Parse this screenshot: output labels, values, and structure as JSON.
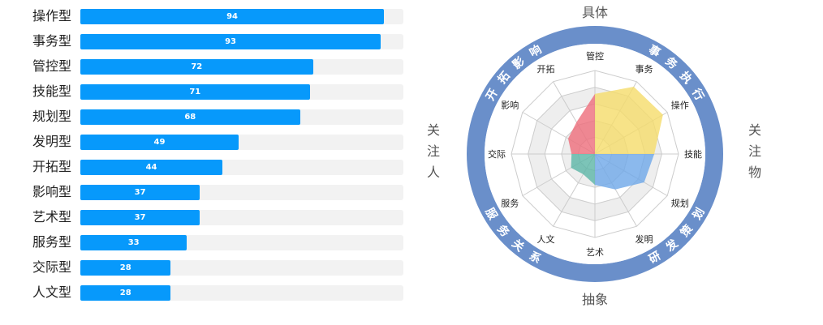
{
  "chart_data": [
    {
      "type": "bar",
      "orientation": "horizontal",
      "xlim": [
        0,
        100
      ],
      "categories": [
        "操作型",
        "事务型",
        "管控型",
        "技能型",
        "规划型",
        "发明型",
        "开拓型",
        "影响型",
        "艺术型",
        "服务型",
        "交际型",
        "人文型"
      ],
      "values": [
        94,
        93,
        72,
        71,
        68,
        49,
        44,
        37,
        37,
        33,
        28,
        28
      ],
      "colors": {
        "bar": "#0799fb",
        "track": "#f2f2f2"
      }
    },
    {
      "type": "radar",
      "axes": [
        "管控",
        "事务",
        "操作",
        "技能",
        "规划",
        "发明",
        "艺术",
        "人文",
        "服务",
        "交际",
        "影响",
        "开拓"
      ],
      "values": [
        72,
        93,
        94,
        71,
        68,
        49,
        37,
        28,
        33,
        28,
        37,
        44
      ],
      "rlim": [
        0,
        100
      ],
      "quadrants": [
        {
          "label": "事务执行",
          "axes": [
            "管控",
            "事务",
            "操作"
          ],
          "color": "#f5dc6a"
        },
        {
          "label": "研发策划",
          "axes": [
            "技能",
            "规划",
            "发明"
          ],
          "color": "#6ea7e8"
        },
        {
          "label": "服务关系",
          "axes": [
            "艺术",
            "人文",
            "服务"
          ],
          "color": "#5bb5a6"
        },
        {
          "label": "开拓影响",
          "axes": [
            "交际",
            "影响",
            "开拓"
          ],
          "color": "#ee6d7a"
        }
      ],
      "poles": {
        "top": "具体",
        "bottom": "抽象",
        "left": "关注人",
        "right": "关注物"
      },
      "colors": {
        "ring": "#6a8fca",
        "grid_band": "#eeeeee",
        "grid_line": "#cccccc"
      }
    }
  ]
}
